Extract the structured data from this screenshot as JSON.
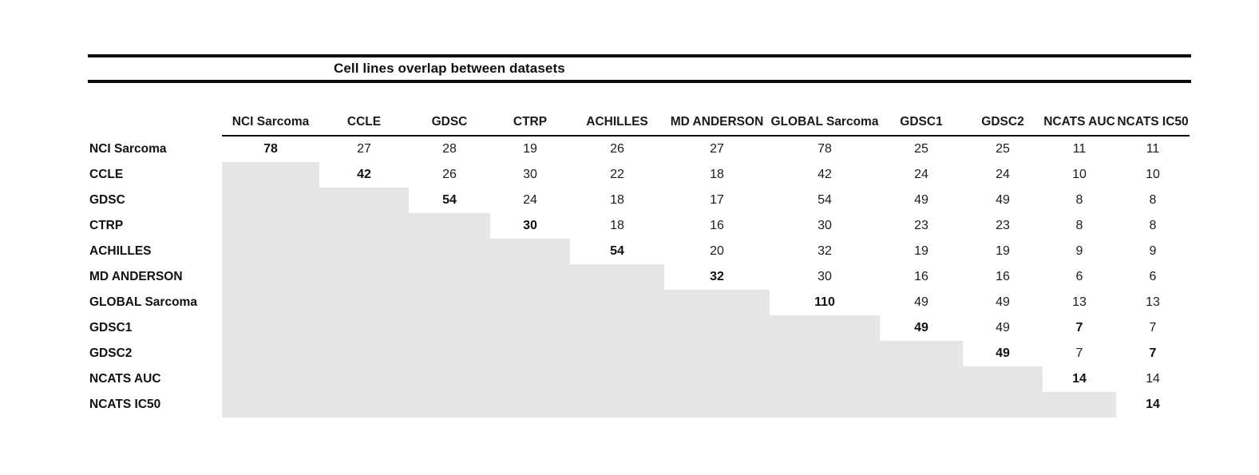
{
  "chart_data": {
    "type": "table",
    "title": "Cell lines overlap between datasets",
    "columns": [
      "NCI Sarcoma",
      "CCLE",
      "GDSC",
      "CTRP",
      "ACHILLES",
      "MD ANDERSON",
      "GLOBAL Sarcoma",
      "GDSC1",
      "GDSC2",
      "NCATS AUC",
      "NCATS IC50"
    ],
    "rows": [
      {
        "label": "NCI Sarcoma",
        "values": [
          "78",
          "27",
          "28",
          "19",
          "26",
          "27",
          "78",
          "25",
          "25",
          "11",
          "11"
        ],
        "bold": [
          0
        ]
      },
      {
        "label": "CCLE",
        "values": [
          "",
          "42",
          "26",
          "30",
          "22",
          "18",
          "42",
          "24",
          "24",
          "10",
          "10"
        ],
        "bold": [
          1
        ]
      },
      {
        "label": "GDSC",
        "values": [
          "",
          "",
          "54",
          "24",
          "18",
          "17",
          "54",
          "49",
          "49",
          "8",
          "8"
        ],
        "bold": [
          2
        ]
      },
      {
        "label": "CTRP",
        "values": [
          "",
          "",
          "",
          "30",
          "18",
          "16",
          "30",
          "23",
          "23",
          "8",
          "8"
        ],
        "bold": [
          3
        ]
      },
      {
        "label": "ACHILLES",
        "values": [
          "",
          "",
          "",
          "",
          "54",
          "20",
          "32",
          "19",
          "19",
          "9",
          "9"
        ],
        "bold": [
          4
        ]
      },
      {
        "label": "MD ANDERSON",
        "values": [
          "",
          "",
          "",
          "",
          "",
          "32",
          "30",
          "16",
          "16",
          "6",
          "6"
        ],
        "bold": [
          5
        ]
      },
      {
        "label": "GLOBAL Sarcoma",
        "values": [
          "",
          "",
          "",
          "",
          "",
          "",
          "110",
          "49",
          "49",
          "13",
          "13"
        ],
        "bold": [
          6
        ]
      },
      {
        "label": "GDSC1",
        "values": [
          "",
          "",
          "",
          "",
          "",
          "",
          "",
          "49",
          "49",
          "7",
          "7"
        ],
        "bold": [
          7,
          9
        ]
      },
      {
        "label": "GDSC2",
        "values": [
          "",
          "",
          "",
          "",
          "",
          "",
          "",
          "",
          "49",
          "7",
          "7"
        ],
        "bold": [
          8,
          10
        ]
      },
      {
        "label": "NCATS AUC",
        "values": [
          "",
          "",
          "",
          "",
          "",
          "",
          "",
          "",
          "",
          "14",
          "14"
        ],
        "bold": [
          9
        ]
      },
      {
        "label": "NCATS IC50",
        "values": [
          "",
          "",
          "",
          "",
          "",
          "",
          "",
          "",
          "",
          "",
          "14"
        ],
        "bold": [
          10
        ]
      }
    ],
    "shading": "cells below the diagonal are filled gray forming a staircase",
    "colors": {
      "shade": "#e7e6e6",
      "rule": "#0d0d0d",
      "text": "#1a1a1a"
    }
  }
}
